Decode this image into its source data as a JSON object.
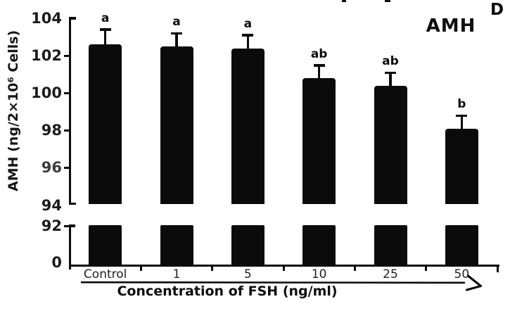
{
  "figure": {
    "panel_label": "D",
    "plot_label": "AMH"
  },
  "chart_data": {
    "type": "bar",
    "title": "AMH (panel D)",
    "categories": [
      "Control",
      "1",
      "5",
      "10",
      "25",
      "50"
    ],
    "values": [
      102.6,
      102.5,
      102.4,
      100.8,
      100.4,
      98.1
    ],
    "errors": [
      0.8,
      0.7,
      0.7,
      0.7,
      0.7,
      0.7
    ],
    "significance_labels": [
      "a",
      "a",
      "a",
      "ab",
      "ab",
      "b"
    ],
    "xlabel": "Concentration of FSH (ng/ml)",
    "ylabel": "AMH (ng/2×10⁶ Cells)",
    "bar_color": "#0b0b0b",
    "legend": "none",
    "grid": false,
    "y_axis": {
      "broken_axis": true,
      "upper_ticks": [
        104,
        102,
        100,
        98,
        96,
        94
      ],
      "lower_ticks": [
        92,
        0
      ],
      "upper_range": [
        94,
        104
      ]
    }
  }
}
